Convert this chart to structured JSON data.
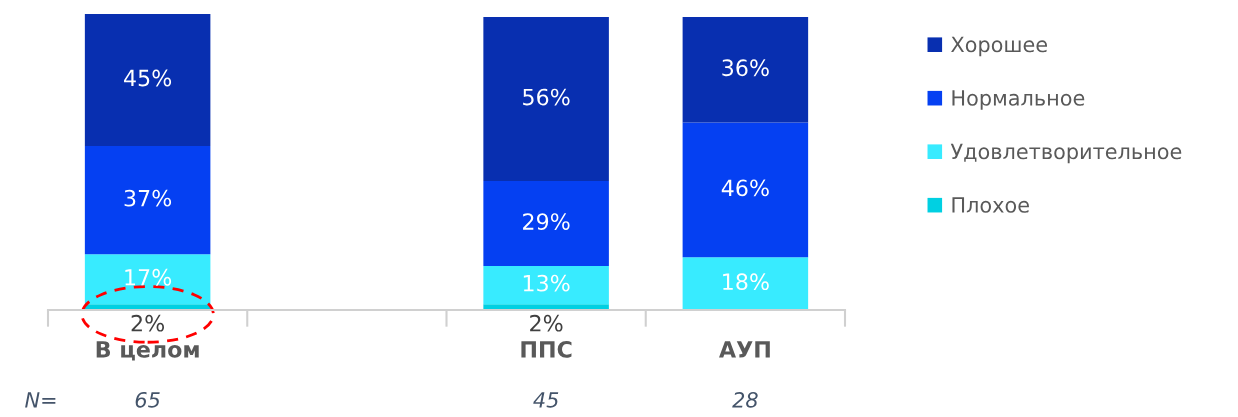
{
  "chart_data": {
    "type": "bar",
    "stacked": true,
    "categories": [
      "В целом",
      null,
      "ППС",
      "АУП"
    ],
    "series": [
      {
        "name": "Плохое",
        "color": "#00d0e2",
        "values": [
          2,
          null,
          2,
          null
        ],
        "value_labels": [
          "2%",
          null,
          "2%",
          null
        ]
      },
      {
        "name": "Удовлетворительное",
        "color": "#38ebff",
        "values": [
          17,
          null,
          13,
          18
        ],
        "value_labels": [
          "17%",
          null,
          "13%",
          "18%"
        ]
      },
      {
        "name": "Нормальное",
        "color": "#0540f2",
        "values": [
          37,
          null,
          29,
          46
        ],
        "value_labels": [
          "37%",
          null,
          "29%",
          "46%"
        ]
      },
      {
        "name": "Хорошее",
        "color": "#082fb0",
        "values": [
          45,
          null,
          56,
          36
        ],
        "value_labels": [
          "45%",
          null,
          "56%",
          "36%"
        ]
      }
    ],
    "annotations": [
      "N=",
      "65",
      "45",
      "28"
    ],
    "legend": "right",
    "grid": false
  }
}
